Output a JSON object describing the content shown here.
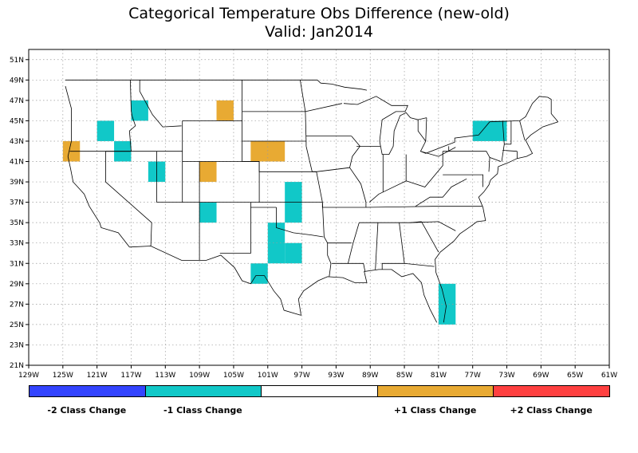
{
  "title": {
    "line1": "Categorical Temperature Obs Difference (new-old)",
    "line2": "Valid: Jan2014"
  },
  "map": {
    "lon_range": [
      -129,
      -61
    ],
    "lat_range": [
      21,
      52
    ],
    "lon_ticks": [
      "129W",
      "125W",
      "121W",
      "117W",
      "113W",
      "109W",
      "105W",
      "101W",
      "97W",
      "93W",
      "89W",
      "85W",
      "81W",
      "77W",
      "73W",
      "69W",
      "65W",
      "61W"
    ],
    "lat_ticks": [
      "21N",
      "23N",
      "25N",
      "27N",
      "29N",
      "31N",
      "33N",
      "35N",
      "37N",
      "39N",
      "41N",
      "43N",
      "45N",
      "47N",
      "49N",
      "51N"
    ],
    "grid": true,
    "cells": [
      {
        "lon0": -125,
        "lon1": -123,
        "lat0": 41,
        "lat1": 43,
        "cls": 1
      },
      {
        "lon0": -121,
        "lon1": -119,
        "lat0": 43,
        "lat1": 45,
        "cls": -1
      },
      {
        "lon0": -119,
        "lon1": -117,
        "lat0": 41,
        "lat1": 43,
        "cls": -1
      },
      {
        "lon0": -117,
        "lon1": -115,
        "lat0": 45,
        "lat1": 47,
        "cls": -1
      },
      {
        "lon0": -115,
        "lon1": -113,
        "lat0": 39,
        "lat1": 41,
        "cls": -1
      },
      {
        "lon0": -107,
        "lon1": -105,
        "lat0": 45,
        "lat1": 47,
        "cls": 1
      },
      {
        "lon0": -109,
        "lon1": -107,
        "lat0": 39,
        "lat1": 41,
        "cls": 1
      },
      {
        "lon0": -103,
        "lon1": -99,
        "lat0": 41,
        "lat1": 43,
        "cls": 1
      },
      {
        "lon0": -109,
        "lon1": -107,
        "lat0": 35,
        "lat1": 37,
        "cls": -1
      },
      {
        "lon0": -99,
        "lon1": -97,
        "lat0": 35,
        "lat1": 39,
        "cls": -1
      },
      {
        "lon0": -101,
        "lon1": -99,
        "lat0": 31,
        "lat1": 35,
        "cls": -1
      },
      {
        "lon0": -99,
        "lon1": -97,
        "lat0": 31,
        "lat1": 33,
        "cls": -1
      },
      {
        "lon0": -103,
        "lon1": -101,
        "lat0": 29,
        "lat1": 31,
        "cls": -1
      },
      {
        "lon0": -81,
        "lon1": -79,
        "lat0": 25,
        "lat1": 29,
        "cls": -1
      },
      {
        "lon0": -77,
        "lon1": -73,
        "lat0": 43,
        "lat1": 45,
        "cls": -1
      }
    ]
  },
  "legend": {
    "items": [
      {
        "label": "-2 Class Change",
        "color": "#3344ff",
        "show_label": true
      },
      {
        "label": "-1 Class Change",
        "color": "#11c8c8",
        "show_label": true
      },
      {
        "label": "0",
        "color": "#ffffff",
        "show_label": false
      },
      {
        "label": "+1 Class Change",
        "color": "#e8aa33",
        "show_label": true
      },
      {
        "label": "+2 Class Change",
        "color": "#ff4040",
        "show_label": true
      }
    ]
  },
  "colors": {
    "minus1": "#11c8c8",
    "plus1": "#e8aa33",
    "grid": "#9a9a9a"
  }
}
